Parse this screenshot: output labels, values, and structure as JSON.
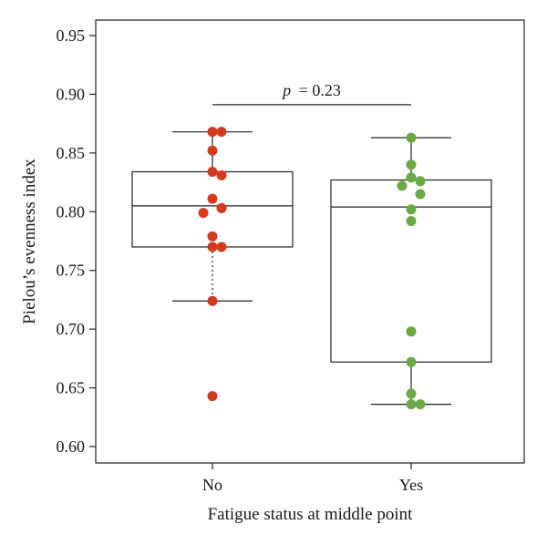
{
  "chart_data": {
    "type": "box",
    "xlabel": "Fatigue status at middle point",
    "ylabel": "Pielou’s evenness index",
    "ylim": [
      0.6,
      0.96
    ],
    "yticks": [
      0.6,
      0.65,
      0.7,
      0.75,
      0.8,
      0.85,
      0.9,
      0.95
    ],
    "categories": [
      "No",
      "Yes"
    ],
    "groups": [
      {
        "category": "No",
        "color": "#d63a1e",
        "box": {
          "whisker_low": 0.724,
          "q1": 0.77,
          "median": 0.805,
          "q3": 0.834,
          "whisker_high": 0.868
        },
        "whisker_style_low": "dotted",
        "points": [
          0.868,
          0.868,
          0.852,
          0.834,
          0.831,
          0.811,
          0.803,
          0.799,
          0.779,
          0.77,
          0.77,
          0.724,
          0.643
        ]
      },
      {
        "category": "Yes",
        "color": "#6aaa45",
        "box": {
          "whisker_low": 0.636,
          "q1": 0.672,
          "median": 0.804,
          "q3": 0.827,
          "whisker_high": 0.863
        },
        "whisker_style_low": "solid",
        "points": [
          0.863,
          0.84,
          0.829,
          0.826,
          0.822,
          0.815,
          0.802,
          0.792,
          0.698,
          0.672,
          0.645,
          0.636,
          0.636
        ]
      }
    ],
    "annotation": {
      "text": "p = 0.23",
      "p_symbol": "p",
      "p_value": "= 0.23",
      "between": [
        "No",
        "Yes"
      ],
      "y": 0.902
    }
  }
}
